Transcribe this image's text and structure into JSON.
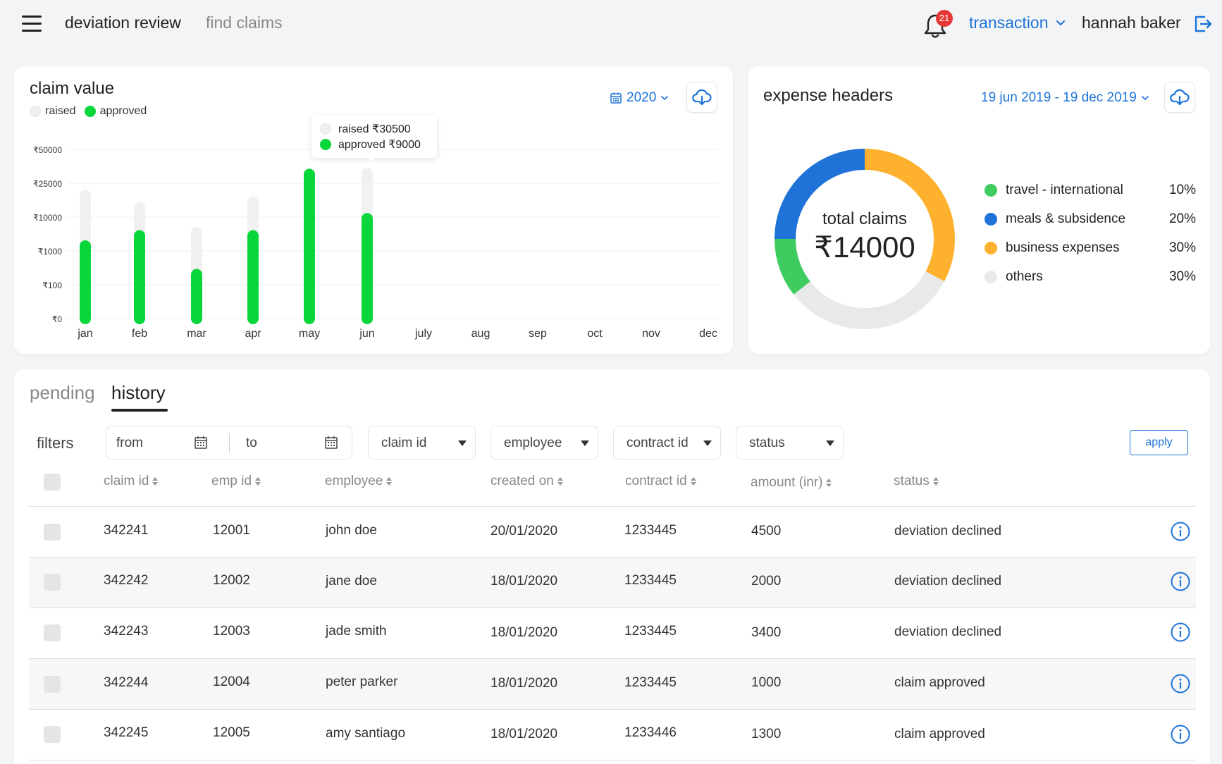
{
  "header": {
    "menu_icon": "hamburger-icon",
    "nav_primary": "deviation review",
    "nav_secondary": "find claims",
    "notification_count": "21",
    "transaction_select": "transaction",
    "user_name": "hannah baker"
  },
  "claim_card": {
    "title": "claim value",
    "legend_raised": "raised",
    "legend_approved": "approved",
    "year": "2020",
    "tooltip_raised": "raised ₹30500",
    "tooltip_approved": "approved ₹9000"
  },
  "chart_data": {
    "type": "bar",
    "title": "claim value",
    "y_scale": "log",
    "y_ticks": [
      "₹50000",
      "₹25000",
      "₹10000",
      "₹1000",
      "₹100",
      "₹0"
    ],
    "categories": [
      "jan",
      "feb",
      "mar",
      "apr",
      "may",
      "jun",
      "july",
      "aug",
      "sep",
      "oct",
      "nov",
      "dec"
    ],
    "series": [
      {
        "name": "raised",
        "color": "#f0f0f0",
        "values": [
          18000,
          13000,
          3500,
          15000,
          30000,
          30500,
          null,
          null,
          null,
          null,
          null,
          null
        ]
      },
      {
        "name": "approved",
        "color": "#09d63b",
        "values": [
          1400,
          2800,
          200,
          2800,
          30000,
          9000,
          null,
          null,
          null,
          null,
          null,
          null
        ]
      }
    ],
    "legend": "top-left",
    "grid": true
  },
  "expense_card": {
    "title": "expense headers",
    "date_range": "19 jun 2019 - 19 dec 2019",
    "center_label": "total claims",
    "center_value": "₹14000",
    "items": [
      {
        "label": "travel - international",
        "pct": "10%",
        "color": "#3fcc5f"
      },
      {
        "label": "meals & subsidence",
        "pct": "20%",
        "color": "#1f72d8"
      },
      {
        "label": "business expenses",
        "pct": "30%",
        "color": "#feb12e"
      },
      {
        "label": "others",
        "pct": "30%",
        "color": "#e9e9e9"
      }
    ]
  },
  "tabs": {
    "pending": "pending",
    "history": "history"
  },
  "filters": {
    "label": "filters",
    "from": "from",
    "to": "to",
    "claim_id": "claim id",
    "employee": "employee",
    "contract_id": "contract id",
    "status": "status",
    "apply": "apply"
  },
  "table": {
    "headers": {
      "claim_id": "claim id",
      "emp_id": "emp id",
      "employee": "employee",
      "created_on": "created on",
      "contract_id": "contract id",
      "amount": "amount (inr)",
      "status": "status"
    },
    "rows": [
      {
        "claim_id": "342241",
        "emp_id": "12001",
        "employee": "john doe",
        "created_on": "20/01/2020",
        "contract_id": "1233445",
        "amount": "4500",
        "status": "deviation declined"
      },
      {
        "claim_id": "342242",
        "emp_id": "12002",
        "employee": "jane doe",
        "created_on": "18/01/2020",
        "contract_id": "1233445",
        "amount": "2000",
        "status": "deviation declined"
      },
      {
        "claim_id": "342243",
        "emp_id": "12003",
        "employee": "jade smith",
        "created_on": "18/01/2020",
        "contract_id": "1233445",
        "amount": "3400",
        "status": "deviation declined"
      },
      {
        "claim_id": "342244",
        "emp_id": "12004",
        "employee": "peter parker",
        "created_on": "18/01/2020",
        "contract_id": "1233445",
        "amount": "1000",
        "status": "claim approved"
      },
      {
        "claim_id": "342245",
        "emp_id": "12005",
        "employee": "amy santiago",
        "created_on": "18/01/2020",
        "contract_id": "1233446",
        "amount": "1300",
        "status": "claim approved"
      }
    ]
  }
}
